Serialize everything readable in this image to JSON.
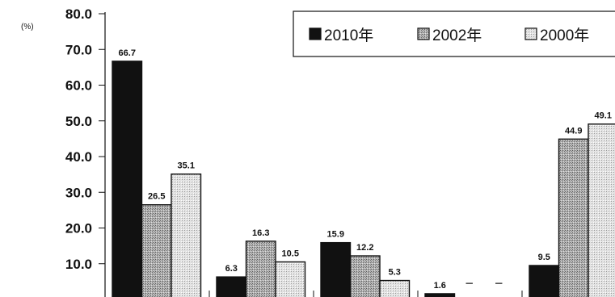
{
  "chart_data": {
    "type": "bar",
    "unit_label": "(%)",
    "ylim": [
      0,
      80
    ],
    "y_ticks": [
      "80.0",
      "70.0",
      "60.0",
      "50.0",
      "40.0",
      "30.0",
      "20.0",
      "10.0"
    ],
    "legend_position": "top-right",
    "legend": [
      {
        "name": "2010年",
        "color": "#111111",
        "icon": "solid-square"
      },
      {
        "name": "2002年",
        "color": "#9a9a9a",
        "icon": "hatched-square"
      },
      {
        "name": "2000年",
        "color": "#d4d4d4",
        "icon": "light-hatched-square"
      }
    ],
    "series": [
      {
        "name": "2010年",
        "color": "#111111",
        "values": [
          66.7,
          6.3,
          15.9,
          1.6,
          9.5
        ],
        "labels": [
          "66.7",
          "6.3",
          "15.9",
          "1.6",
          "9.5"
        ]
      },
      {
        "name": "2002年",
        "color": "#9a9a9a",
        "values": [
          26.5,
          16.3,
          12.2,
          null,
          44.9
        ],
        "labels": [
          "26.5",
          "16.3",
          "12.2",
          "－",
          "44.9"
        ]
      },
      {
        "name": "2000年",
        "color": "#d4d4d4",
        "values": [
          35.1,
          10.5,
          5.3,
          null,
          49.1
        ],
        "labels": [
          "35.1",
          "10.5",
          "5.3",
          "－",
          "49.1"
        ]
      }
    ]
  }
}
